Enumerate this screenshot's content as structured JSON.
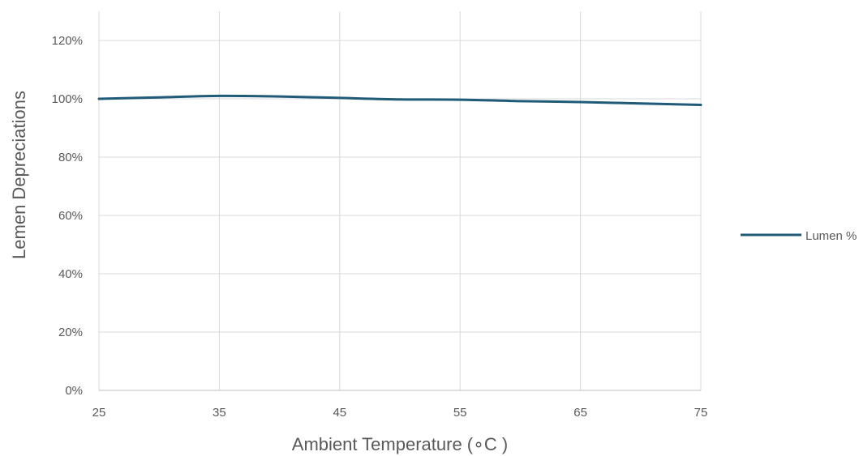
{
  "chart_data": {
    "type": "line",
    "title": "",
    "xlabel": "Ambient Temperature (∘C )",
    "ylabel": "Lemen Depreciations",
    "x": [
      25,
      30,
      35,
      40,
      45,
      50,
      55,
      60,
      65,
      70,
      75
    ],
    "xticks": [
      25,
      35,
      45,
      55,
      65,
      75
    ],
    "xtick_labels": [
      "25",
      "35",
      "45",
      "55",
      "65",
      "75"
    ],
    "xlim": [
      25,
      75
    ],
    "yticks": [
      0,
      20,
      40,
      60,
      80,
      100,
      120
    ],
    "ytick_labels": [
      "0%",
      "20%",
      "40%",
      "60%",
      "80%",
      "100%",
      "120%"
    ],
    "ylim": [
      0,
      130
    ],
    "grid": true,
    "legend_position": "right",
    "series": [
      {
        "name": "Lumen %",
        "color": "#1F5A78",
        "values": [
          100,
          100.5,
          101,
          100.8,
          100.3,
          99.8,
          99.7,
          99.2,
          98.9,
          98.4,
          97.9
        ]
      }
    ]
  }
}
